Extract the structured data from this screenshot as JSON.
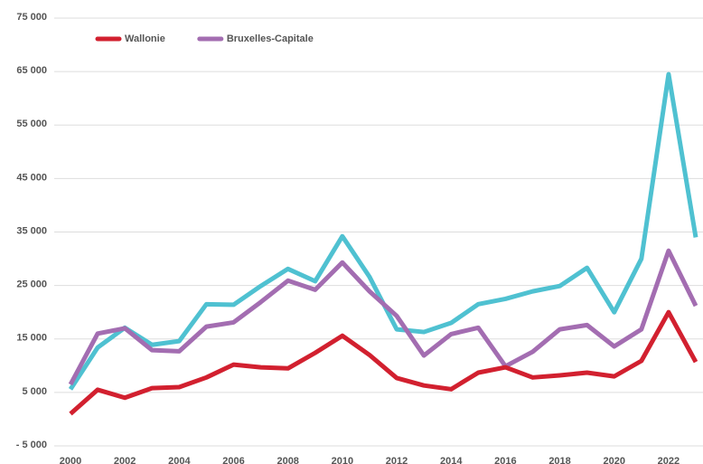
{
  "chart_data": {
    "type": "line",
    "x": [
      2000,
      2001,
      2002,
      2003,
      2004,
      2005,
      2006,
      2007,
      2008,
      2009,
      2010,
      2011,
      2012,
      2013,
      2014,
      2015,
      2016,
      2017,
      2018,
      2019,
      2020,
      2021,
      2022,
      2023
    ],
    "series": [
      {
        "name": "Wallonie",
        "color": "#d2202f",
        "values": [
          1000,
          5500,
          4000,
          5800,
          6000,
          7800,
          10200,
          9700,
          9500,
          12400,
          15600,
          12000,
          7700,
          6300,
          5600,
          8700,
          9700,
          7800,
          8200,
          8700,
          8000,
          10900,
          20000,
          10700
        ]
      },
      {
        "name": "Bruxelles-Capitale",
        "color": "#a36db1",
        "values": [
          6500,
          16000,
          17000,
          12900,
          12700,
          17300,
          18100,
          21900,
          25900,
          24200,
          29300,
          23900,
          19300,
          11900,
          15900,
          17100,
          9900,
          12600,
          16800,
          17600,
          13600,
          16800,
          31500,
          21200
        ]
      },
      {
        "color": "#4fc1d1",
        "values": [
          5600,
          13400,
          17100,
          13900,
          14600,
          21500,
          21400,
          24900,
          28100,
          25800,
          34200,
          26600,
          16800,
          16300,
          18000,
          21500,
          22500,
          23900,
          24900,
          28300,
          20000,
          30000,
          64500,
          34000
        ]
      }
    ],
    "xlim": [
      2000,
      2023
    ],
    "xticks": [
      2000,
      2002,
      2004,
      2006,
      2008,
      2010,
      2012,
      2014,
      2016,
      2018,
      2020,
      2022
    ],
    "ylim": [
      -5000,
      75000
    ],
    "yticks": [
      {
        "value": -5000,
        "label": "- 5 000"
      },
      {
        "value": 5000,
        "label": "5 000"
      },
      {
        "value": 15000,
        "label": "15 000"
      },
      {
        "value": 25000,
        "label": "25 000"
      },
      {
        "value": 35000,
        "label": "35 000"
      },
      {
        "value": 45000,
        "label": "45 000"
      },
      {
        "value": 55000,
        "label": "55 000"
      },
      {
        "value": 65000,
        "label": "65 000"
      },
      {
        "value": 75000,
        "label": "75 000"
      }
    ],
    "grid": true,
    "legend": "top-left"
  }
}
